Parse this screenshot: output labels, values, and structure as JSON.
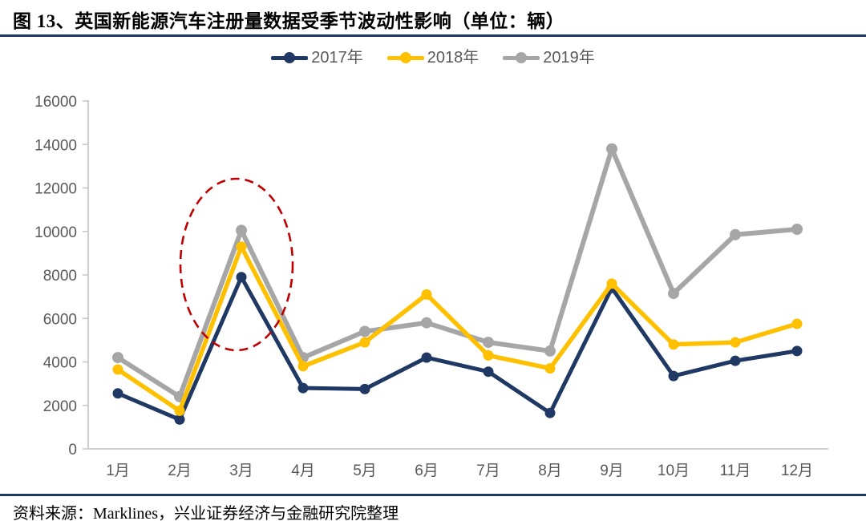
{
  "header": {
    "title": "图 13、英国新能源汽车注册量数据受季节波动性影响（单位：辆）"
  },
  "footer": {
    "source": "资料来源：Marklines，兴业证券经济与金融研究院整理"
  },
  "colors": {
    "navy": "#1F3864",
    "yellow": "#FFC000",
    "gray": "#A6A6A6",
    "axis_line": "#C9C9C9",
    "tick_label": "#595959",
    "annotation_red": "#C00000",
    "rule": "#1F3864"
  },
  "chart_data": {
    "type": "line",
    "title": "图 13、英国新能源汽车注册量数据受季节波动性影响（单位：辆）",
    "categories": [
      "1月",
      "2月",
      "3月",
      "4月",
      "5月",
      "6月",
      "7月",
      "8月",
      "9月",
      "10月",
      "11月",
      "12月"
    ],
    "series": [
      {
        "name": "2017年",
        "color": "#1F3864",
        "values": [
          2550,
          1350,
          7900,
          2800,
          2750,
          4200,
          3550,
          1650,
          7400,
          3350,
          4050,
          4500
        ]
      },
      {
        "name": "2018年",
        "color": "#FFC000",
        "values": [
          3650,
          1750,
          9300,
          3800,
          4900,
          7100,
          4300,
          3700,
          7600,
          4800,
          4900,
          5750
        ]
      },
      {
        "name": "2019年",
        "color": "#A6A6A6",
        "values": [
          4200,
          2400,
          10050,
          4200,
          5400,
          5800,
          4900,
          4500,
          13800,
          7150,
          9850,
          10100
        ]
      }
    ],
    "draw_order": [
      2,
      0,
      1
    ],
    "ylim": [
      0,
      16000
    ],
    "ytick_step": 2000,
    "yticks": [
      "0",
      "2000",
      "4000",
      "6000",
      "8000",
      "10000",
      "12000",
      "14000",
      "16000"
    ],
    "grid": false,
    "legend_position": "top",
    "annotation": {
      "type": "dashed-ellipse",
      "highlighted_category": "3月",
      "color": "#C00000"
    }
  }
}
